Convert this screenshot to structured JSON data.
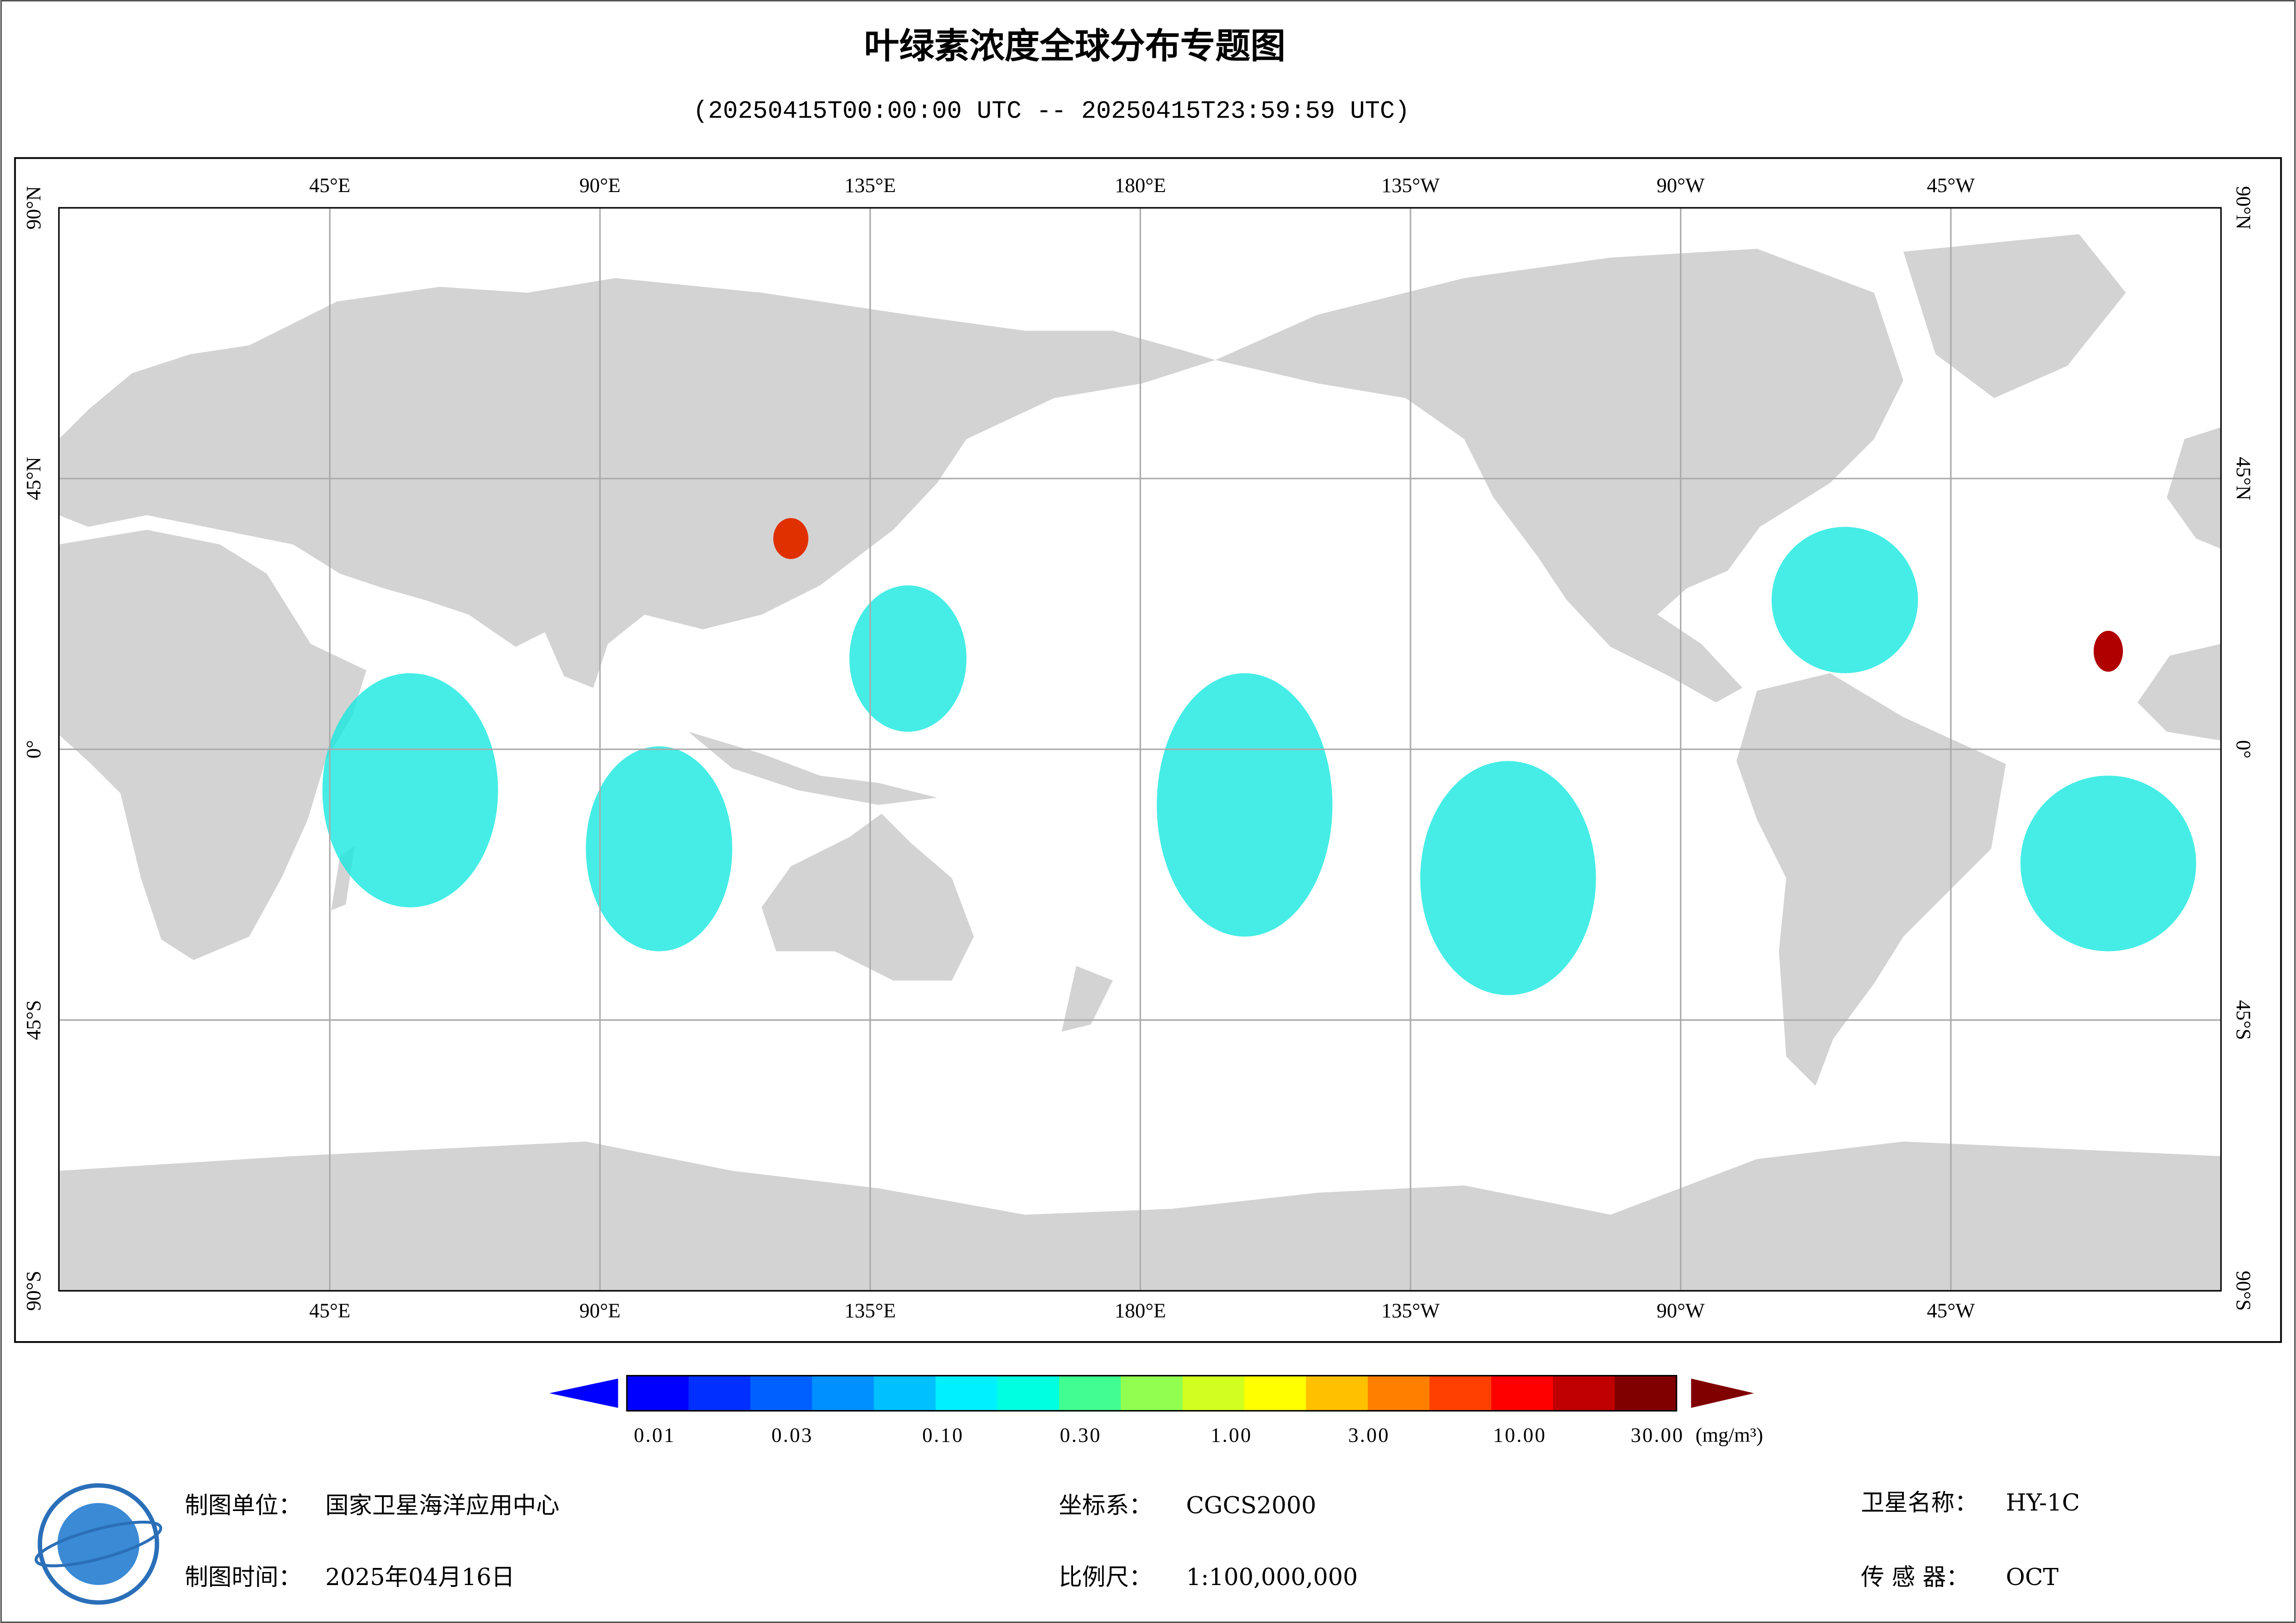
{
  "header": {
    "title": "叶绿素浓度全球分布专题图",
    "subtitle": "(20250415T00:00:00 UTC -- 20250415T23:59:59 UTC)"
  },
  "map": {
    "lon_range": [
      0,
      360
    ],
    "lat_range": [
      -90,
      90
    ],
    "lon_ticks": [
      {
        "value": 45,
        "label": "45°E"
      },
      {
        "value": 90,
        "label": "90°E"
      },
      {
        "value": 135,
        "label": "135°E"
      },
      {
        "value": 180,
        "label": "180°E"
      },
      {
        "value": -135,
        "label": "135°W"
      },
      {
        "value": -90,
        "label": "90°W"
      },
      {
        "value": -45,
        "label": "45°W"
      }
    ],
    "lat_ticks": [
      {
        "value": 90,
        "label": "90°N"
      },
      {
        "value": 45,
        "label": "45°N"
      },
      {
        "value": 0,
        "label": "0°"
      },
      {
        "value": -45,
        "label": "45°S"
      },
      {
        "value": -90,
        "label": "90°S"
      }
    ],
    "grid": true
  },
  "colorbar": {
    "log_scale": true,
    "range": [
      0.01,
      30
    ],
    "ticks": [
      {
        "value": 0.01,
        "label": "0.01"
      },
      {
        "value": 0.03,
        "label": "0.03"
      },
      {
        "value": 0.1,
        "label": "0.10"
      },
      {
        "value": 0.3,
        "label": "0.30"
      },
      {
        "value": 1,
        "label": "1.00"
      },
      {
        "value": 3,
        "label": "3.00"
      },
      {
        "value": 10,
        "label": "10.00"
      },
      {
        "value": 30,
        "label": "30.00"
      }
    ],
    "unit": "(mg/m³)",
    "colors": [
      "#0000ff",
      "#0030ff",
      "#0060ff",
      "#0090ff",
      "#00c0ff",
      "#00f0ff",
      "#00ffe0",
      "#40ff90",
      "#90ff50",
      "#d0ff20",
      "#ffff00",
      "#ffc000",
      "#ff8000",
      "#ff4000",
      "#ff0000",
      "#c00000",
      "#800000"
    ]
  },
  "footer": {
    "unit": {
      "label": "制图单位：",
      "value": "国家卫星海洋应用中心"
    },
    "date": {
      "label": "制图时间：",
      "value": "2025年04月16日"
    },
    "crs": {
      "label": "坐标系：",
      "value": "CGCS2000"
    },
    "scale": {
      "label": "比例尺：",
      "value": "1:100,000,000"
    },
    "satellite": {
      "label": "卫星名称：",
      "value": "HY-1C"
    },
    "sensor": {
      "label": "传 感 器：",
      "value": "OCT"
    }
  }
}
